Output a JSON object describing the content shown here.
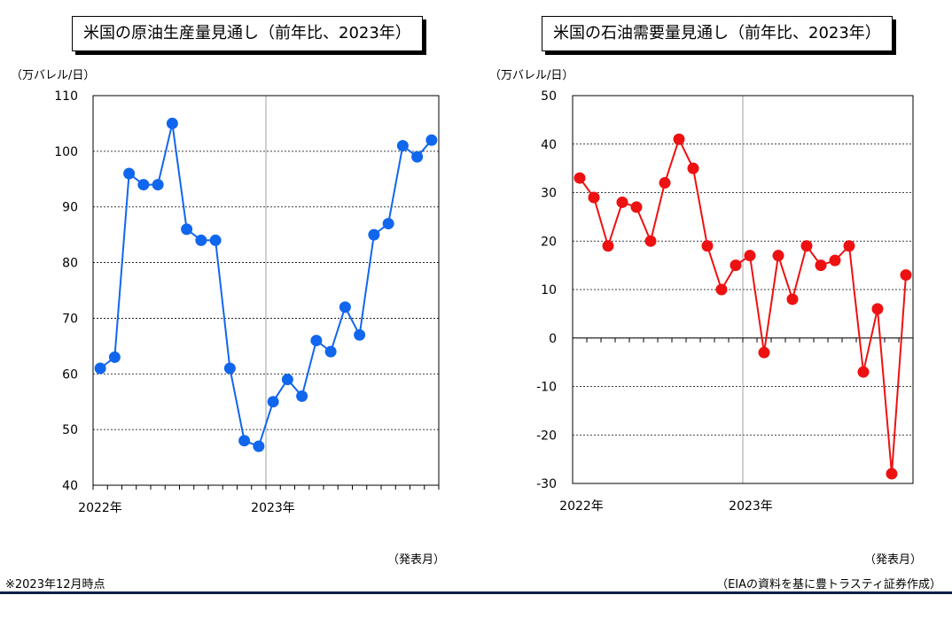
{
  "chart_data": [
    {
      "type": "line",
      "title": "米国の原油生産量見通し（前年比、2023年）",
      "unit_label": "（万バレル/日）",
      "x_unit_label": "（発表月）",
      "x_tick_labels": [
        "2022年",
        "2023年"
      ],
      "ylim": [
        40,
        110
      ],
      "yticks": [
        40,
        50,
        60,
        70,
        80,
        90,
        100,
        110
      ],
      "grid": true,
      "color": "#1166ee",
      "values": [
        61,
        63,
        96,
        94,
        94,
        105,
        86,
        84,
        84,
        61,
        48,
        47,
        55,
        59,
        56,
        66,
        64,
        72,
        67,
        85,
        87,
        101,
        99,
        102
      ]
    },
    {
      "type": "line",
      "title": "米国の石油需要量見通し（前年比、2023年）",
      "unit_label": "（万バレル/日）",
      "x_unit_label": "（発表月）",
      "x_tick_labels": [
        "2022年",
        "2023年"
      ],
      "ylim": [
        -30,
        50
      ],
      "yticks": [
        -30,
        -20,
        -10,
        0,
        10,
        20,
        30,
        40,
        50
      ],
      "grid": true,
      "color": "#ee1111",
      "values": [
        33,
        29,
        19,
        28,
        27,
        20,
        32,
        41,
        35,
        19,
        10,
        15,
        17,
        -3,
        17,
        8,
        19,
        15,
        16,
        19,
        -7,
        6,
        -28,
        13
      ]
    }
  ],
  "footnote_left": "※2023年12月時点",
  "footnote_right": "（EIAの資料を基に豊トラスティ証券作成）"
}
